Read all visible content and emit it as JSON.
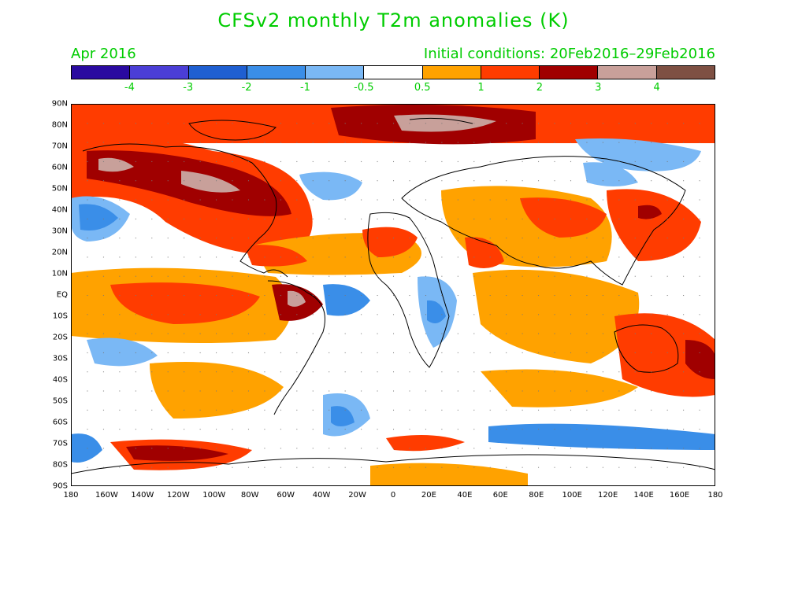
{
  "title": "CFSv2 monthly T2m anomalies (K)",
  "period": "Apr 2016",
  "initial_conditions": "Initial conditions: 20Feb2016–29Feb2016",
  "colorbar": {
    "colors": [
      "#2a0aa0",
      "#4b3ed6",
      "#1f5fd1",
      "#3a8ee8",
      "#7ab8f5",
      "#ffffff",
      "#ffa200",
      "#ff3c00",
      "#a00000",
      "#c8a09a",
      "#7e5043"
    ],
    "labels": [
      "-4",
      "-3",
      "-2",
      "-1",
      "-0.5",
      "0.5",
      "1",
      "2",
      "3",
      "4"
    ]
  },
  "lat_labels": [
    "90N",
    "80N",
    "70N",
    "60N",
    "50N",
    "40N",
    "30N",
    "20N",
    "10N",
    "EQ",
    "10S",
    "20S",
    "30S",
    "40S",
    "50S",
    "60S",
    "70S",
    "80S",
    "90S"
  ],
  "lon_labels": [
    "180",
    "160W",
    "140W",
    "120W",
    "100W",
    "80W",
    "60W",
    "40W",
    "20W",
    "0",
    "20E",
    "40E",
    "60E",
    "80E",
    "100E",
    "120E",
    "140E",
    "160E",
    "180"
  ]
}
